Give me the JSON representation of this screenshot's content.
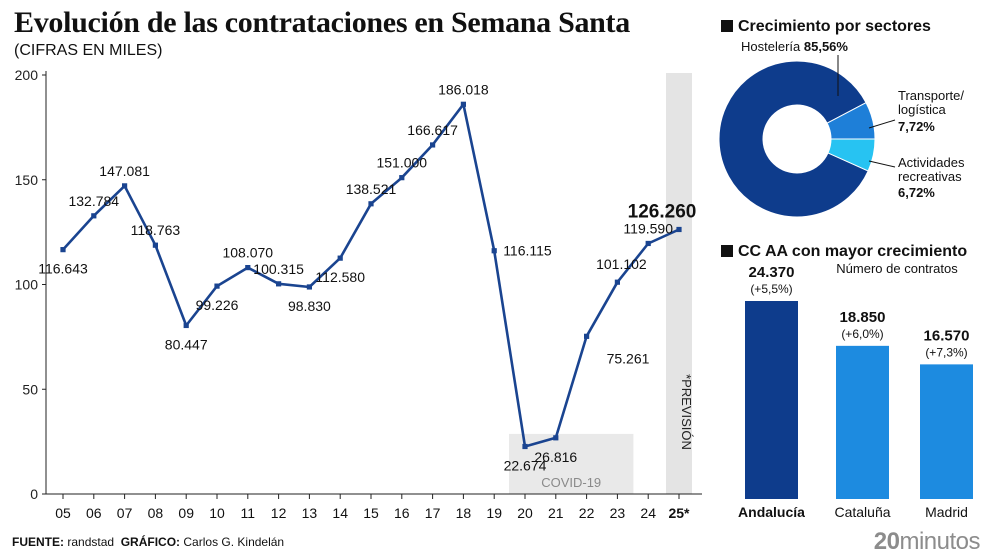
{
  "header": {
    "title": "Evolución de las contrataciones en Semana Santa",
    "subtitle": "(CIFRAS EN MILES)"
  },
  "footer": {
    "source_label": "FUENTE:",
    "source": "randstad",
    "graphic_label": "GRÁFICO:",
    "graphic": "Carlos G. Kindelán",
    "logo_number": "20",
    "logo_word": "minutos"
  },
  "annotations": {
    "covid": "COVID-19",
    "forecast": "*PREVISIÓN"
  },
  "colors": {
    "line": "#1a4490",
    "covid_band": "#e9e9e9",
    "forecast_band": "#e4e4e4",
    "donut_dark": "#0e3c8c",
    "donut_mid": "#1e7fd8",
    "donut_light": "#27c3f2",
    "bar_dark": "#0e3c8c",
    "bar_light": "#1d8be0"
  },
  "sectors": {
    "title": "Crecimiento por sectores"
  },
  "regions": {
    "title": "CC AA con mayor crecimiento",
    "subtitle": "Número de contratos"
  },
  "chart_data": [
    {
      "type": "line",
      "categories": [
        "05",
        "06",
        "07",
        "08",
        "09",
        "10",
        "11",
        "12",
        "13",
        "14",
        "15",
        "16",
        "17",
        "18",
        "19",
        "20",
        "21",
        "22",
        "23",
        "24",
        "25*"
      ],
      "values": [
        116.643,
        132.784,
        147.081,
        118.763,
        80.447,
        99.226,
        108.07,
        100.315,
        98.83,
        112.58,
        138.521,
        151.0,
        166.617,
        186.018,
        116.115,
        22.674,
        26.816,
        75.261,
        101.102,
        119.59,
        126.26
      ],
      "labels": [
        "116.643",
        "132.784",
        "147.081",
        "118.763",
        "80.447",
        "99.226",
        "108.070",
        "100.315",
        "98.830",
        "112.580",
        "138.521",
        "151.000",
        "166.617",
        "186.018",
        "116.115",
        "22.674",
        "26.816",
        "75.261",
        "101.102",
        "119.590",
        "126.260"
      ],
      "ylim": [
        0,
        200
      ],
      "yticks": [
        "0",
        "50",
        "100",
        "150",
        "200"
      ],
      "grid": false
    },
    {
      "type": "pie",
      "title": "Crecimiento por sectores",
      "slices": [
        {
          "name": "Hostelería",
          "value": 85.56,
          "label": "85,56%"
        },
        {
          "name": "Transporte/ logística",
          "value": 7.72,
          "label": "7,72%"
        },
        {
          "name": "Actividades recreativas",
          "value": 6.72,
          "label": "6,72%"
        }
      ]
    },
    {
      "type": "bar",
      "title": "CC AA con mayor crecimiento",
      "subtitle": "Número de contratos",
      "categories": [
        "Andalucía",
        "Cataluña",
        "Madrid"
      ],
      "values": [
        24370,
        18850,
        16570
      ],
      "labels": [
        "24.370",
        "18.850",
        "16.570"
      ],
      "changes": [
        "(+5,5%)",
        "(+6,0%)",
        "(+7,3%)"
      ]
    }
  ]
}
